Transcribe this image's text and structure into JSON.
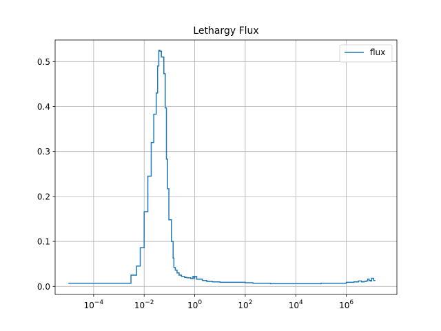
{
  "chart_data": {
    "type": "line",
    "title": "Lethargy Flux",
    "xlabel": "",
    "ylabel": "",
    "x_scale": "log",
    "xlim": [
      3e-06,
      100000000.0
    ],
    "ylim": [
      -0.018,
      0.548
    ],
    "grid": true,
    "legend_position": "top-right",
    "x_ticks": [
      {
        "value": 0.0001,
        "base": "10",
        "exp": "−4"
      },
      {
        "value": 0.01,
        "base": "10",
        "exp": "−2"
      },
      {
        "value": 1,
        "base": "10",
        "exp": "0"
      },
      {
        "value": 100,
        "base": "10",
        "exp": "2"
      },
      {
        "value": 10000,
        "base": "10",
        "exp": "4"
      },
      {
        "value": 1000000,
        "base": "10",
        "exp": "6"
      }
    ],
    "y_ticks": [
      {
        "value": 0.0,
        "label": "0.0"
      },
      {
        "value": 0.1,
        "label": "0.1"
      },
      {
        "value": 0.2,
        "label": "0.2"
      },
      {
        "value": 0.3,
        "label": "0.3"
      },
      {
        "value": 0.4,
        "label": "0.4"
      },
      {
        "value": 0.5,
        "label": "0.5"
      }
    ],
    "series": [
      {
        "name": "flux",
        "color": "#1f77b4",
        "drawstyle": "steps-post",
        "x": [
          1e-05,
          0.003,
          0.005,
          0.007,
          0.01,
          0.014,
          0.019,
          0.024,
          0.03,
          0.034,
          0.038,
          0.042,
          0.048,
          0.06,
          0.068,
          0.076,
          0.084,
          0.095,
          0.12,
          0.14,
          0.15,
          0.17,
          0.2,
          0.24,
          0.3,
          0.4,
          0.5,
          0.7,
          0.85,
          0.95,
          1.0,
          1.2,
          2,
          3,
          5,
          10,
          30,
          100,
          200,
          1000,
          10000,
          100000,
          1000000,
          2000000,
          3000000,
          4000000,
          5000000,
          6000000,
          7000000,
          8000000,
          9000000,
          10000000,
          12000000,
          14000000
        ],
        "y": [
          0.007,
          0.025,
          0.045,
          0.086,
          0.166,
          0.245,
          0.32,
          0.383,
          0.43,
          0.49,
          0.525,
          0.523,
          0.51,
          0.473,
          0.397,
          0.283,
          0.217,
          0.148,
          0.1,
          0.063,
          0.042,
          0.036,
          0.03,
          0.025,
          0.022,
          0.02,
          0.019,
          0.017,
          0.022,
          0.018,
          0.022,
          0.016,
          0.013,
          0.011,
          0.01,
          0.009,
          0.009,
          0.008,
          0.007,
          0.006,
          0.006,
          0.007,
          0.009,
          0.01,
          0.012,
          0.01,
          0.011,
          0.012,
          0.016,
          0.013,
          0.012,
          0.018,
          0.013,
          0.013
        ]
      }
    ]
  }
}
